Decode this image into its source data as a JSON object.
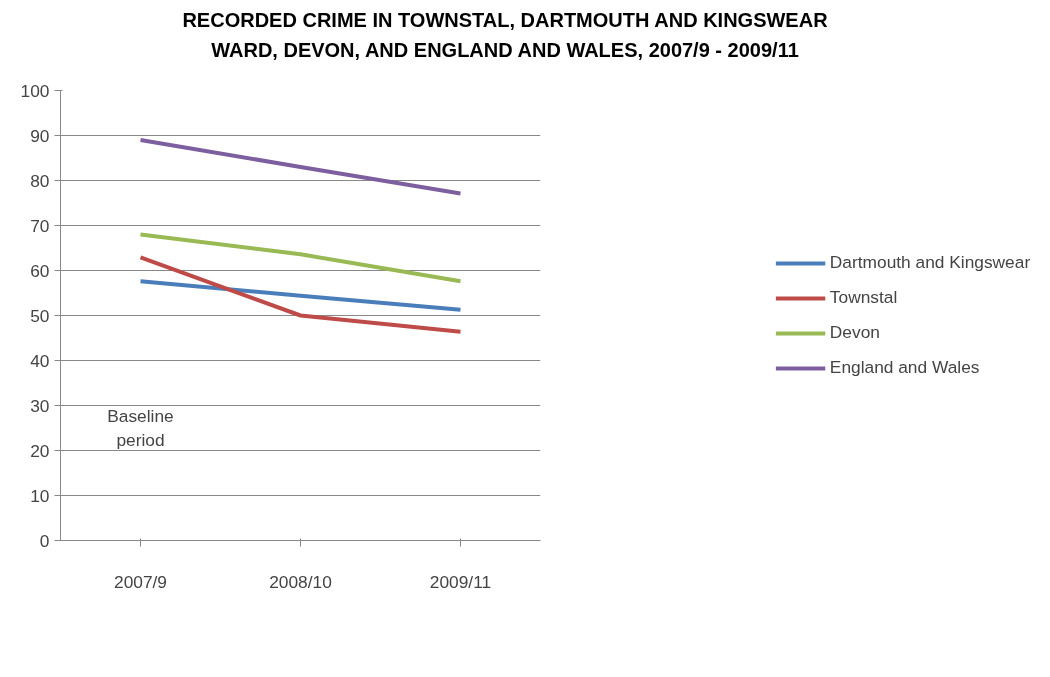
{
  "chart_data": {
    "type": "line",
    "title": "RECORDED CRIME IN TOWNSTAL, DARTMOUTH AND KINGSWEAR WARD, DEVON, AND ENGLAND AND WALES, 2007/9 - 2009/11",
    "categories": [
      "2007/9",
      "2008/10",
      "2009/11"
    ],
    "series": [
      {
        "name": "Dartmouth and Kingswear",
        "color": "#4a7ebb",
        "values": [
          57.6,
          54.4,
          51.3
        ]
      },
      {
        "name": "Townstal",
        "color": "#be4b48",
        "values": [
          62.9,
          50.0,
          46.4
        ]
      },
      {
        "name": "Devon",
        "color": "#98b954",
        "values": [
          68.0,
          63.6,
          57.6
        ]
      },
      {
        "name": "England and Wales",
        "color": "#7d5fa0",
        "values": [
          89.0,
          83.0,
          77.1
        ]
      }
    ],
    "ylim": [
      0,
      100
    ],
    "yticks": [
      0,
      10,
      20,
      30,
      40,
      50,
      60,
      70,
      80,
      90,
      100
    ],
    "grid": "y",
    "legend": "right",
    "marker": "none",
    "line_style": "solid",
    "annotations": [
      "Baseline period"
    ]
  }
}
